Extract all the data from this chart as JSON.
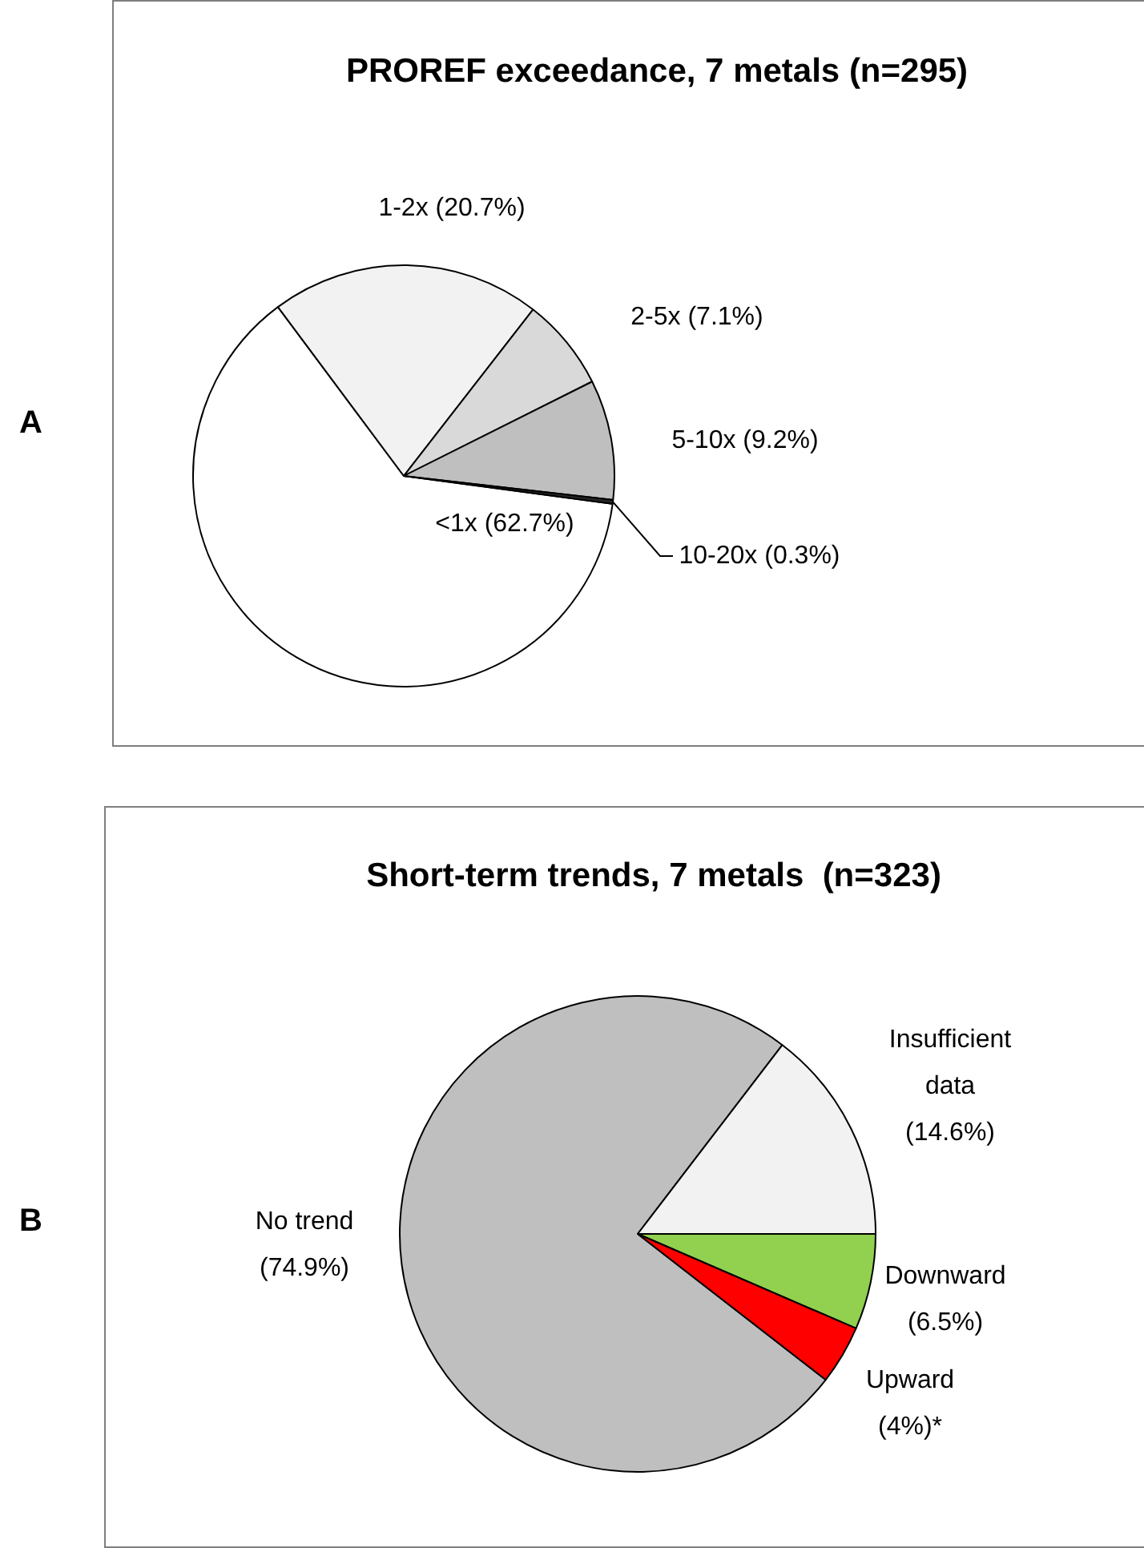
{
  "chart_data": [
    {
      "type": "pie",
      "title": "PROREF exceedance, 7 metals (n=295)",
      "categories": [
        "<1x (62.7%)",
        "1-2x (20.7%)",
        "2-5x (7.1%)",
        "5-10x (9.2%)",
        "10-20x (0.3%)"
      ],
      "values": [
        62.7,
        20.7,
        7.1,
        9.2,
        0.3
      ],
      "colors": [
        "#ffffff",
        "#f2f2f2",
        "#d9d9d9",
        "#bfbfbf",
        "#262626"
      ],
      "annotations": [
        "A"
      ]
    },
    {
      "type": "pie",
      "title": "Short-term trends, 7 metals  (n=323)",
      "categories": [
        "No trend (74.9%)",
        "Insufficient data (14.6%)",
        "Downward (6.5%)",
        "Upward (4%)*"
      ],
      "values": [
        74.9,
        14.6,
        6.5,
        4
      ],
      "colors": [
        "#bfbfbf",
        "#f2f2f2",
        "#92d050",
        "#ff0000"
      ],
      "annotations": [
        "B"
      ]
    }
  ]
}
